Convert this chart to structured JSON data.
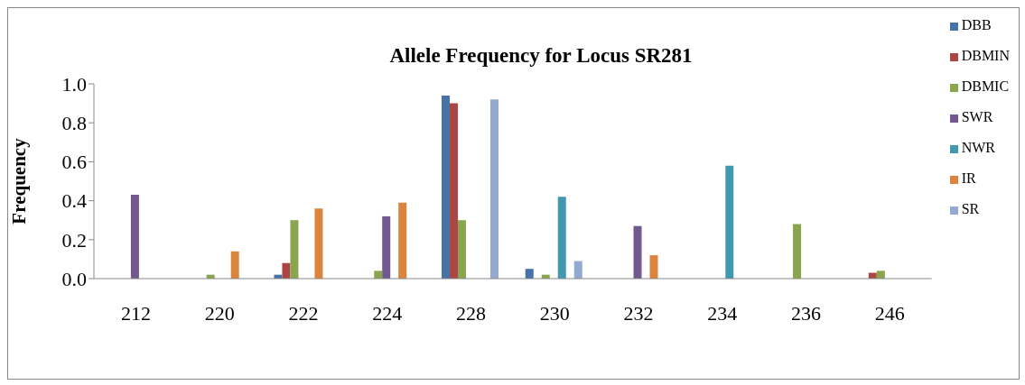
{
  "chart_data": {
    "type": "bar",
    "title": "Allele Frequency for Locus SR281",
    "ylabel": "Frequency",
    "categories": [
      "212",
      "220",
      "222",
      "224",
      "228",
      "230",
      "232",
      "234",
      "236",
      "246"
    ],
    "series": [
      {
        "name": "DBB",
        "color": "#4572a7",
        "values": [
          0,
          0,
          0.02,
          0,
          0.94,
          0.05,
          0,
          0,
          0,
          0
        ]
      },
      {
        "name": "DBMIN",
        "color": "#aa4643",
        "values": [
          0,
          0,
          0.08,
          0,
          0.9,
          0,
          0,
          0,
          0,
          0.03
        ]
      },
      {
        "name": "DBMIC",
        "color": "#89a54e",
        "values": [
          0,
          0.02,
          0.3,
          0.04,
          0.3,
          0.02,
          0,
          0,
          0.28,
          0.04
        ]
      },
      {
        "name": "SWR",
        "color": "#71588f",
        "values": [
          0.43,
          0,
          0,
          0.32,
          0,
          0,
          0.27,
          0,
          0,
          0
        ]
      },
      {
        "name": "NWR",
        "color": "#4198af",
        "values": [
          0,
          0,
          0,
          0,
          0,
          0.42,
          0,
          0.58,
          0,
          0
        ]
      },
      {
        "name": "IR",
        "color": "#db843d",
        "values": [
          0,
          0.14,
          0.36,
          0.39,
          0,
          0,
          0.12,
          0,
          0,
          0
        ]
      },
      {
        "name": "SR",
        "color": "#93a9cf",
        "values": [
          0,
          0,
          0,
          0,
          0.92,
          0.09,
          0,
          0,
          0,
          0
        ]
      }
    ],
    "ylim": [
      0,
      1.0
    ],
    "yticks": [
      {
        "value": 0,
        "label": "0.0"
      },
      {
        "value": 0.2,
        "label": "0.2"
      },
      {
        "value": 0.4,
        "label": "0.4"
      },
      {
        "value": 0.6,
        "label": "0.6"
      },
      {
        "value": 0.8,
        "label": "0.8"
      },
      {
        "value": 1.0,
        "label": "1.0"
      }
    ],
    "legend": "right",
    "grid": false
  }
}
